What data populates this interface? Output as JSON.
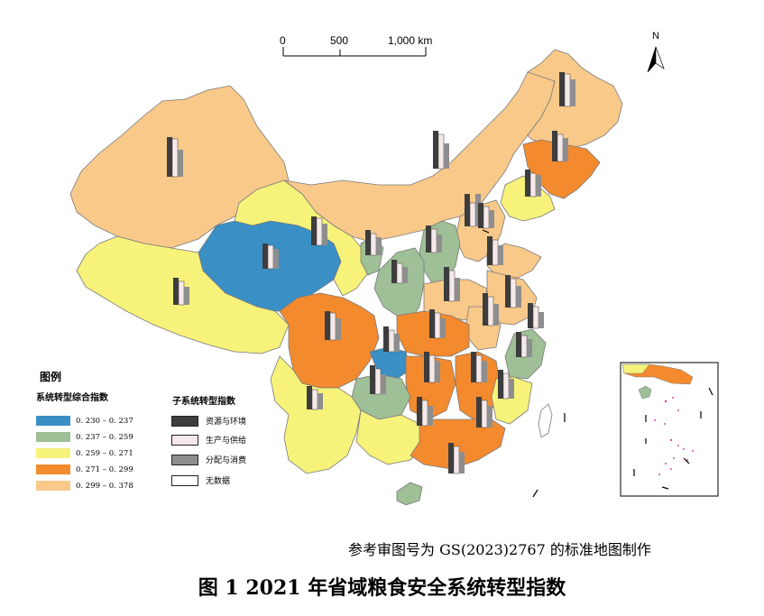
{
  "figure_title": "图 1 2021 年省域粮食安全系统转型指数",
  "source_note": "参考审图号为 GS(2023)2767 的标准地图制作",
  "north_label": "N",
  "scale_bar": {
    "labels": [
      "0",
      "500",
      "1,000 km"
    ]
  },
  "legend": {
    "title": "图例",
    "composite_title": "系统转型综合指数",
    "classes": [
      {
        "label": "0. 230 – 0. 237",
        "color": "#3a8fc4"
      },
      {
        "label": "0. 237 – 0. 259",
        "color": "#9fbf96"
      },
      {
        "label": "0. 259 – 0. 271",
        "color": "#f7f27a"
      },
      {
        "label": "0. 271 – 0. 299",
        "color": "#f48a2e"
      },
      {
        "label": "0. 299 – 0. 378",
        "color": "#f9c98a"
      }
    ],
    "subsystem_title": "子系统转型指数",
    "subsystems": [
      {
        "label": "资源与环境",
        "color": "#3d3d3d"
      },
      {
        "label": "生产与供给",
        "color": "#f6e9ea"
      },
      {
        "label": "分配与消费",
        "color": "#8e8e8e"
      },
      {
        "label": "无数据",
        "color": "#ffffff"
      }
    ]
  },
  "colors": {
    "border": "#7a7a7a",
    "inset_frame": "#000000",
    "islands": "#d94fa6"
  }
}
